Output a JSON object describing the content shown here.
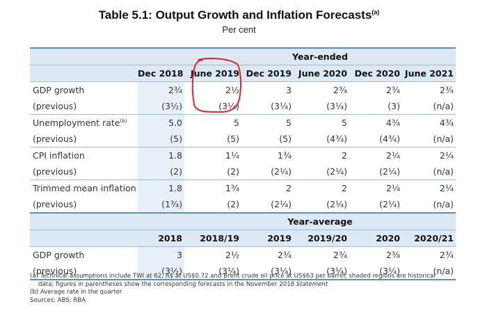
{
  "title": "Table 5.1: Output Growth and Inflation Forecasts",
  "title_note": "(a)",
  "subtitle": "Per cent",
  "section_year_ended": "Year-ended",
  "section_year_average": "Year-average",
  "year_ended_columns": [
    "Dec 2018",
    "June 2019",
    "Dec 2019",
    "June 2020",
    "Dec 2020",
    "June 2021"
  ],
  "year_average_columns": [
    "2018",
    "2018/19",
    "2019",
    "2019/20",
    "2020",
    "2020/21"
  ],
  "rows": [
    {
      "label": "GDP growth",
      "values": [
        "2¾",
        "2½",
        "3",
        "2¾",
        "2¾",
        "2¾"
      ]
    },
    {
      "label": "(previous)",
      "values": [
        "(3½)",
        "(3¼)",
        "(3¼)",
        "(3¼)",
        "(3)",
        "(n/a)"
      ]
    },
    {
      "label": "Unemployment rate",
      "label_note": "(b)",
      "values": [
        "5.0",
        "5",
        "5",
        "5",
        "4¾",
        "4¾"
      ]
    },
    {
      "label": "(previous)",
      "values": [
        "(5)",
        "(5)",
        "(5)",
        "(4¾)",
        "(4¾)",
        "(n/a)"
      ]
    },
    {
      "label": "CPI inflation",
      "values": [
        "1.8",
        "1¼",
        "1¾",
        "2",
        "2¼",
        "2¼"
      ]
    },
    {
      "label": "(previous)",
      "values": [
        "(2)",
        "(2)",
        "(2¼)",
        "(2¼)",
        "(2¼)",
        "(n/a)"
      ]
    },
    {
      "label": "Trimmed mean inflation",
      "values": [
        "1.8",
        "1¾",
        "2",
        "2",
        "2¼",
        "2¼"
      ]
    },
    {
      "label": "(previous)",
      "values": [
        "(1¾)",
        "(2)",
        "(2¼)",
        "(2¼)",
        "(2¼)",
        "(n/a)"
      ]
    }
  ],
  "avg_rows": [
    {
      "label": "GDP growth",
      "values": [
        "3",
        "2½",
        "2¾",
        "2¾",
        "2¾",
        "2¾"
      ]
    },
    {
      "label": "(previous)",
      "values": [
        "(3½)",
        "(3¼)",
        "(3¼)",
        "(3¼)",
        "(3¼)",
        "(n/a)"
      ]
    }
  ],
  "notes": {
    "a_line1": "(a)  Technical assumptions include  TWI at 62, A$ at US$0.72 and Brent crude oil price at US$63 per barrel; shaded regions are historical",
    "a_line2": "data; figures in parentheses show the corresponding forecasts in the November 2018 ",
    "a_line2_italic": "Statement",
    "b": "(b)  Average rate in the quarter",
    "sources": "Sources: ABS; RBA"
  },
  "colors": {
    "header_band": "#dce9f5",
    "shade": "#e7f0f8",
    "rule": "#5b8fc4",
    "annotation": "#e8222a"
  }
}
